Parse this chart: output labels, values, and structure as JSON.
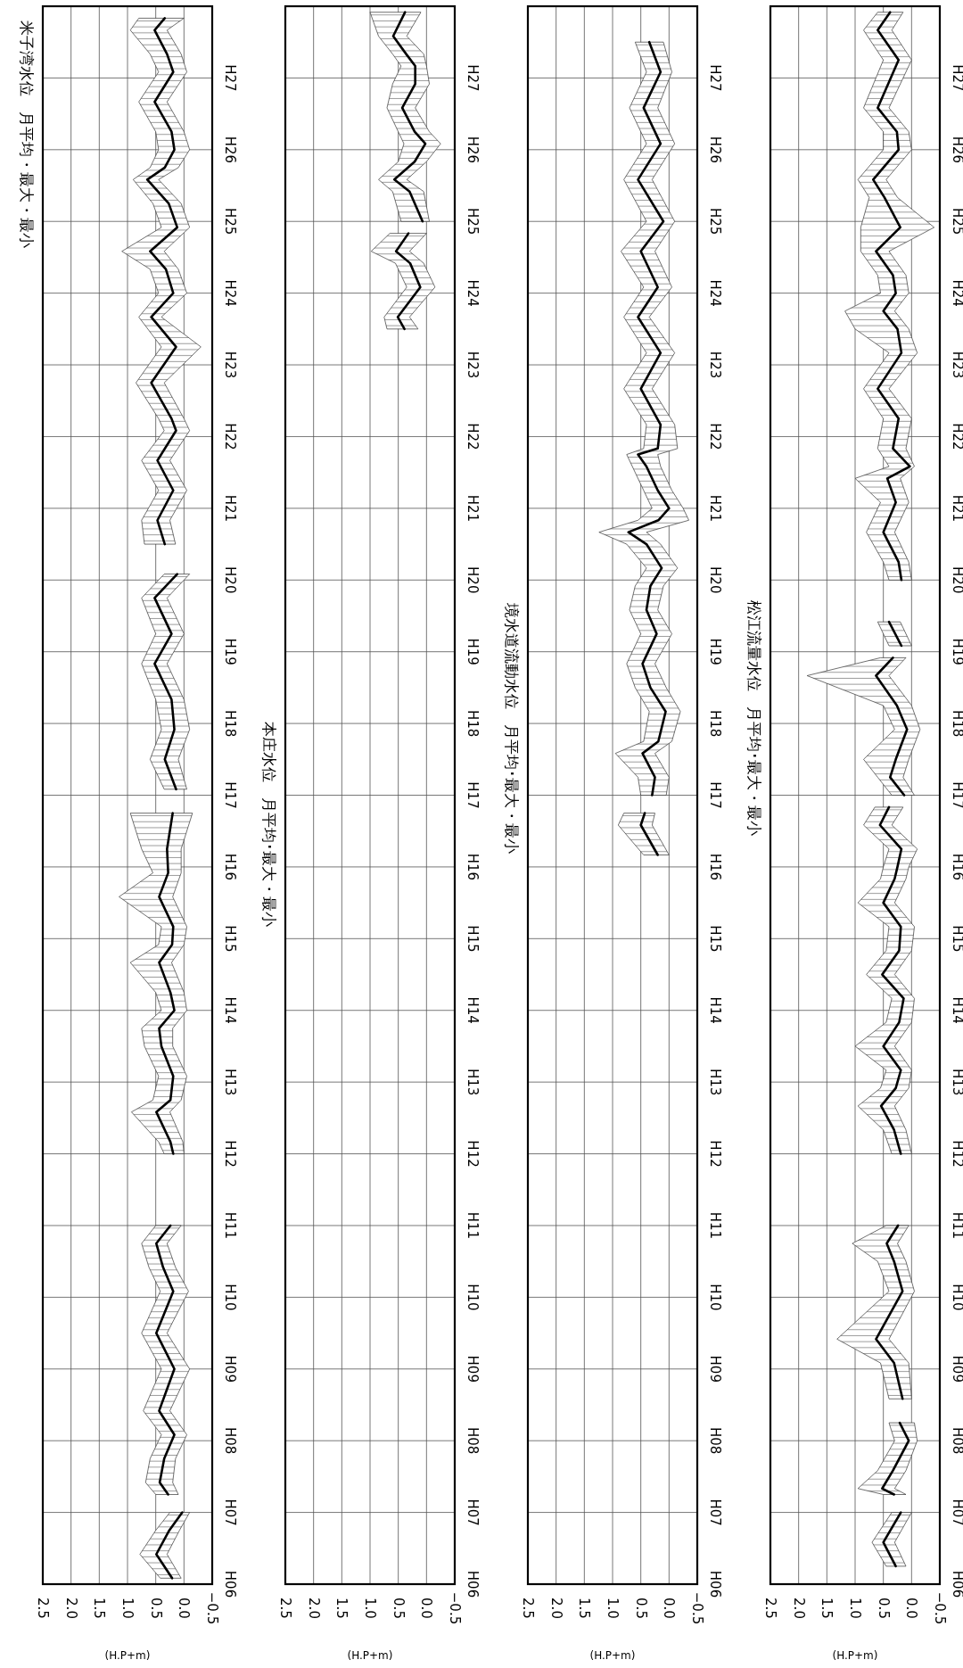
{
  "chart_data": [
    {
      "type": "line",
      "orientation": "horizontal",
      "title": "米子湾水位　月平均・最大・最小",
      "xlabel": "(H.P+m)",
      "ylim": [
        "1994",
        "2016"
      ],
      "xlim": [
        2.5,
        -0.5
      ],
      "grid": true,
      "yticks": [
        {
          "value": "1994",
          "label": "H06"
        },
        {
          "value": "1995",
          "label": "H07"
        },
        {
          "value": "1996",
          "label": "H08"
        },
        {
          "value": "1997",
          "label": "H09"
        },
        {
          "value": "1998",
          "label": "H10"
        },
        {
          "value": "1999",
          "label": "H11"
        },
        {
          "value": "2000",
          "label": "H12"
        },
        {
          "value": "2001",
          "label": "H13"
        },
        {
          "value": "2002",
          "label": "H14"
        },
        {
          "value": "2003",
          "label": "H15"
        },
        {
          "value": "2004",
          "label": "H16"
        },
        {
          "value": "2005",
          "label": "H17"
        },
        {
          "value": "2006",
          "label": "H18"
        },
        {
          "value": "2007",
          "label": "H19"
        },
        {
          "value": "2008",
          "label": "H20"
        },
        {
          "value": "2009",
          "label": "H21"
        },
        {
          "value": "2010",
          "label": "H22"
        },
        {
          "value": "2011",
          "label": "H23"
        },
        {
          "value": "2012",
          "label": "H24"
        },
        {
          "value": "2013",
          "label": "H25"
        },
        {
          "value": "2014",
          "label": "H26"
        },
        {
          "value": "2015",
          "label": "H27"
        }
      ],
      "xticks": [
        {
          "value": 2.5,
          "label": "2.5"
        },
        {
          "value": 2,
          "label": "2.0"
        },
        {
          "value": 1.5,
          "label": "1.5"
        },
        {
          "value": 1,
          "label": "1.0"
        },
        {
          "value": 0.5,
          "label": "0.5"
        },
        {
          "value": 0,
          "label": "0.0"
        },
        {
          "value": -0.5,
          "label": "−0.5"
        }
      ],
      "series": [
        {
          "color": "#000000",
          "x": [
            "1994-02",
            "1994-06",
            "1994-10",
            "1995-01"
          ],
          "values": [
            0.21,
            0.49,
            0.26,
            0.03
          ],
          "lower": [
            0.05,
            0.3,
            0.08,
            -0.1
          ],
          "upper": [
            0.42,
            0.78,
            0.5,
            0.25
          ]
        },
        {
          "color": "#000000",
          "x": [
            "1995-04",
            "1995-06",
            "1995-10",
            "1996-02",
            "1996-06",
            "1997-01",
            "1997-07",
            "1998-02",
            "1998-06",
            "1998-10",
            "1999-01"
          ],
          "values": [
            0.28,
            0.43,
            0.35,
            0.17,
            0.44,
            0.17,
            0.49,
            0.19,
            0.37,
            0.49,
            0.24
          ],
          "lower": [
            0.1,
            0.2,
            0.15,
            -0.05,
            0.25,
            -0.1,
            0.3,
            -0.08,
            0.15,
            0.3,
            0.05
          ],
          "upper": [
            0.5,
            0.68,
            0.6,
            0.4,
            0.72,
            0.4,
            0.75,
            0.42,
            0.62,
            0.75,
            0.5
          ]
        },
        {
          "color": "#000000",
          "x": [
            "2000-01",
            "2000-03",
            "2000-08",
            "2000-10",
            "2001-02",
            "2001-07",
            "2001-10",
            "2002-01",
            "2002-04",
            "2002-09",
            "2002-12",
            "2003-03",
            "2003-08",
            "2003-12",
            "2004-04",
            "2004-10"
          ],
          "values": [
            0.19,
            0.24,
            0.49,
            0.24,
            0.19,
            0.4,
            0.44,
            0.17,
            0.24,
            0.44,
            0.21,
            0.19,
            0.44,
            0.28,
            0.3,
            0.2
          ],
          "lower": [
            0.0,
            0.02,
            0.25,
            0.05,
            -0.05,
            0.2,
            0.2,
            -0.05,
            0.0,
            0.22,
            0.0,
            -0.05,
            0.2,
            0.05,
            0.05,
            -0.15
          ],
          "upper": [
            0.35,
            0.45,
            0.93,
            0.55,
            0.45,
            0.7,
            0.75,
            0.4,
            0.5,
            0.95,
            0.45,
            0.4,
            1.15,
            0.55,
            0.75,
            0.95
          ]
        },
        {
          "color": "#000000",
          "x": [
            "2005-02",
            "2005-07",
            "2005-12",
            "2006-05",
            "2006-11",
            "2007-04",
            "2007-10",
            "2008-02"
          ],
          "values": [
            0.14,
            0.34,
            0.17,
            0.22,
            0.52,
            0.22,
            0.52,
            0.12
          ],
          "lower": [
            -0.05,
            0.1,
            -0.1,
            0.0,
            0.3,
            0.0,
            0.3,
            -0.1
          ],
          "upper": [
            0.35,
            0.6,
            0.4,
            0.5,
            0.75,
            0.5,
            0.75,
            0.35
          ]
        },
        {
          "color": "#000000",
          "x": [
            "2008-07",
            "2008-11",
            "2009-04",
            "2009-09",
            "2010-02",
            "2010-04",
            "2010-10",
            "2011-04",
            "2011-09",
            "2012-01",
            "2012-05",
            "2012-08",
            "2012-12",
            "2013-04",
            "2013-08",
            "2013-10",
            "2014-01",
            "2014-04",
            "2014-09",
            "2015-02",
            "2015-05",
            "2015-09",
            "2015-11"
          ],
          "values": [
            0.34,
            0.47,
            0.19,
            0.47,
            0.14,
            0.22,
            0.58,
            0.14,
            0.58,
            0.19,
            0.32,
            0.6,
            0.12,
            0.27,
            0.65,
            0.34,
            0.17,
            0.22,
            0.52,
            0.19,
            0.3,
            0.52,
            0.34
          ],
          "lower": [
            0.15,
            0.25,
            -0.05,
            0.25,
            -0.1,
            0.0,
            0.35,
            -0.3,
            0.4,
            -0.05,
            0.1,
            0.35,
            -0.1,
            0.05,
            0.45,
            0.1,
            -0.1,
            0.0,
            0.3,
            -0.05,
            0.05,
            0.3,
            0.0
          ],
          "upper": [
            0.7,
            0.75,
            0.45,
            0.75,
            0.35,
            0.45,
            0.85,
            0.4,
            0.8,
            0.45,
            0.6,
            1.1,
            0.4,
            0.55,
            0.9,
            0.6,
            0.45,
            0.5,
            0.8,
            0.45,
            0.6,
            0.95,
            0.8
          ]
        }
      ]
    },
    {
      "type": "line",
      "orientation": "horizontal",
      "title": "本庄水位　月平均･最大・最小",
      "xlabel": "(H.P+m)",
      "ylim": [
        "1994",
        "2016"
      ],
      "xlim": [
        2.5,
        -0.5
      ],
      "grid": true,
      "yticks": [
        {
          "value": "1994",
          "label": "H06"
        },
        {
          "value": "1995",
          "label": "H07"
        },
        {
          "value": "1996",
          "label": "H08"
        },
        {
          "value": "1997",
          "label": "H09"
        },
        {
          "value": "1998",
          "label": "H10"
        },
        {
          "value": "1999",
          "label": "H11"
        },
        {
          "value": "2000",
          "label": "H12"
        },
        {
          "value": "2001",
          "label": "H13"
        },
        {
          "value": "2002",
          "label": "H14"
        },
        {
          "value": "2003",
          "label": "H15"
        },
        {
          "value": "2004",
          "label": "H16"
        },
        {
          "value": "2005",
          "label": "H17"
        },
        {
          "value": "2006",
          "label": "H18"
        },
        {
          "value": "2007",
          "label": "H19"
        },
        {
          "value": "2008",
          "label": "H20"
        },
        {
          "value": "2009",
          "label": "H21"
        },
        {
          "value": "2010",
          "label": "H22"
        },
        {
          "value": "2011",
          "label": "H23"
        },
        {
          "value": "2012",
          "label": "H24"
        },
        {
          "value": "2013",
          "label": "H25"
        },
        {
          "value": "2014",
          "label": "H26"
        },
        {
          "value": "2015",
          "label": "H27"
        }
      ],
      "xticks": [
        {
          "value": 2.5,
          "label": "2.5"
        },
        {
          "value": 2,
          "label": "2.0"
        },
        {
          "value": 1.5,
          "label": "1.5"
        },
        {
          "value": 1,
          "label": "1.0"
        },
        {
          "value": 0.5,
          "label": "0.5"
        },
        {
          "value": 0,
          "label": "0.0"
        },
        {
          "value": -0.5,
          "label": "−0.5"
        }
      ],
      "series": [
        {
          "color": "#000000",
          "x": [
            "2011-07",
            "2011-09",
            "2012-02",
            "2012-06",
            "2012-08",
            "2012-11"
          ],
          "values": [
            0.39,
            0.51,
            0.11,
            0.29,
            0.54,
            0.32
          ],
          "lower": [
            0.15,
            0.3,
            -0.15,
            0.05,
            0.3,
            0.0
          ],
          "upper": [
            0.7,
            0.75,
            0.35,
            0.55,
            0.98,
            0.65
          ]
        },
        {
          "color": "#000000",
          "x": [
            "2013-01",
            "2013-06",
            "2013-08",
            "2013-11",
            "2014-02",
            "2014-04",
            "2014-08",
            "2014-12",
            "2015-03",
            "2015-05",
            "2015-08",
            "2015-12"
          ],
          "values": [
            0.07,
            0.3,
            0.57,
            0.21,
            0.02,
            0.21,
            0.43,
            0.2,
            0.2,
            0.36,
            0.59,
            0.38
          ],
          "lower": [
            -0.05,
            0.05,
            0.35,
            0.0,
            -0.25,
            -0.05,
            0.2,
            -0.05,
            0.0,
            0.05,
            0.35,
            0.1
          ],
          "upper": [
            0.45,
            0.6,
            0.85,
            0.5,
            0.4,
            0.5,
            0.7,
            0.6,
            0.45,
            0.6,
            0.85,
            1.0
          ]
        }
      ]
    },
    {
      "type": "line",
      "orientation": "horizontal",
      "title": "境水道流動水位　月平均･最大・最小",
      "xlabel": "(H.P+m)",
      "ylim": [
        "1994",
        "2016"
      ],
      "xlim": [
        2.5,
        -0.5
      ],
      "grid": true,
      "yticks": [
        {
          "value": "1994",
          "label": "H06"
        },
        {
          "value": "1995",
          "label": "H07"
        },
        {
          "value": "1996",
          "label": "H08"
        },
        {
          "value": "1997",
          "label": "H09"
        },
        {
          "value": "1998",
          "label": "H10"
        },
        {
          "value": "1999",
          "label": "H11"
        },
        {
          "value": "2000",
          "label": "H12"
        },
        {
          "value": "2001",
          "label": "H13"
        },
        {
          "value": "2002",
          "label": "H14"
        },
        {
          "value": "2003",
          "label": "H15"
        },
        {
          "value": "2004",
          "label": "H16"
        },
        {
          "value": "2005",
          "label": "H17"
        },
        {
          "value": "2006",
          "label": "H18"
        },
        {
          "value": "2007",
          "label": "H19"
        },
        {
          "value": "2008",
          "label": "H20"
        },
        {
          "value": "2009",
          "label": "H21"
        },
        {
          "value": "2010",
          "label": "H22"
        },
        {
          "value": "2011",
          "label": "H23"
        },
        {
          "value": "2012",
          "label": "H24"
        },
        {
          "value": "2013",
          "label": "H25"
        },
        {
          "value": "2014",
          "label": "H26"
        },
        {
          "value": "2015",
          "label": "H27"
        }
      ],
      "xticks": [
        {
          "value": 2.5,
          "label": "2.5"
        },
        {
          "value": 2,
          "label": "2.0"
        },
        {
          "value": 1.5,
          "label": "1.5"
        },
        {
          "value": 1,
          "label": "1.0"
        },
        {
          "value": 0.5,
          "label": "0.5"
        },
        {
          "value": 0,
          "label": "0.0"
        },
        {
          "value": -0.5,
          "label": "−0.5"
        }
      ],
      "series": [
        {
          "color": "#000000",
          "x": [
            "2004-03",
            "2004-08",
            "2004-10"
          ],
          "values": [
            0.2,
            0.5,
            0.43
          ],
          "lower": [
            0.0,
            0.3,
            0.25
          ],
          "upper": [
            0.45,
            0.9,
            0.8
          ]
        },
        {
          "color": "#000000",
          "x": [
            "2005-01",
            "2005-04",
            "2005-08",
            "2005-10",
            "2006-03",
            "2006-07",
            "2006-11",
            "2007-04",
            "2007-08",
            "2007-12",
            "2008-03",
            "2008-07",
            "2008-09",
            "2008-11",
            "2009-01",
            "2009-04",
            "2009-08",
            "2009-10",
            "2009-11",
            "2010-03",
            "2010-09",
            "2011-03",
            "2011-09",
            "2012-02",
            "2012-08",
            "2013-01",
            "2013-08",
            "2014-02",
            "2014-08",
            "2015-02",
            "2015-07"
          ],
          "values": [
            0.3,
            0.25,
            0.47,
            0.19,
            0.06,
            0.33,
            0.47,
            0.22,
            0.4,
            0.33,
            0.13,
            0.4,
            0.72,
            0.19,
            0.0,
            0.2,
            0.4,
            0.55,
            0.2,
            0.15,
            0.5,
            0.15,
            0.55,
            0.2,
            0.5,
            0.1,
            0.55,
            0.15,
            0.45,
            0.15,
            0.35
          ],
          "lower": [
            0.05,
            0.0,
            0.25,
            -0.05,
            -0.2,
            0.05,
            0.25,
            -0.05,
            0.2,
            0.1,
            -0.15,
            0.15,
            0.4,
            -0.35,
            -0.25,
            -0.05,
            0.15,
            0.2,
            -0.15,
            -0.1,
            0.3,
            -0.1,
            0.35,
            -0.05,
            0.25,
            -0.1,
            0.3,
            -0.1,
            0.2,
            -0.05,
            0.1
          ],
          "upper": [
            0.5,
            0.55,
            0.95,
            0.45,
            0.35,
            0.6,
            0.75,
            0.5,
            0.7,
            0.6,
            0.4,
            0.75,
            1.24,
            0.55,
            0.3,
            0.45,
            0.65,
            0.75,
            0.45,
            0.4,
            0.8,
            0.4,
            0.8,
            0.45,
            0.85,
            0.4,
            0.8,
            0.4,
            0.7,
            0.4,
            0.6
          ]
        }
      ]
    },
    {
      "type": "line",
      "orientation": "horizontal",
      "title": "松江流量水位　月平均･最大・最小",
      "xlabel": "(H.P+m)",
      "ylim": [
        "1994",
        "2016"
      ],
      "xlim": [
        2.5,
        -0.5
      ],
      "grid": true,
      "yticks": [
        {
          "value": "1994",
          "label": "H06"
        },
        {
          "value": "1995",
          "label": "H07"
        },
        {
          "value": "1996",
          "label": "H08"
        },
        {
          "value": "1997",
          "label": "H09"
        },
        {
          "value": "1998",
          "label": "H10"
        },
        {
          "value": "1999",
          "label": "H11"
        },
        {
          "value": "2000",
          "label": "H12"
        },
        {
          "value": "2001",
          "label": "H13"
        },
        {
          "value": "2002",
          "label": "H14"
        },
        {
          "value": "2003",
          "label": "H15"
        },
        {
          "value": "2004",
          "label": "H16"
        },
        {
          "value": "2005",
          "label": "H17"
        },
        {
          "value": "2006",
          "label": "H18"
        },
        {
          "value": "2007",
          "label": "H19"
        },
        {
          "value": "2008",
          "label": "H20"
        },
        {
          "value": "2009",
          "label": "H21"
        },
        {
          "value": "2010",
          "label": "H22"
        },
        {
          "value": "2011",
          "label": "H23"
        },
        {
          "value": "2012",
          "label": "H24"
        },
        {
          "value": "2013",
          "label": "H25"
        },
        {
          "value": "2014",
          "label": "H26"
        },
        {
          "value": "2015",
          "label": "H27"
        }
      ],
      "xticks": [
        {
          "value": 2.5,
          "label": "2.5"
        },
        {
          "value": 2,
          "label": "2.0"
        },
        {
          "value": 1.5,
          "label": "1.5"
        },
        {
          "value": 1,
          "label": "1.0"
        },
        {
          "value": 0.5,
          "label": "0.5"
        },
        {
          "value": 0,
          "label": "0.0"
        },
        {
          "value": -0.5,
          "label": "−0.5"
        }
      ],
      "series": [
        {
          "color": "#000000",
          "x": [
            "1994-04",
            "1994-08",
            "1995-01"
          ],
          "values": [
            0.28,
            0.5,
            0.19
          ],
          "lower": [
            0.1,
            0.3,
            0.0
          ],
          "upper": [
            0.45,
            0.7,
            0.35
          ]
        },
        {
          "color": "#000000",
          "x": [
            "1995-04",
            "1995-05",
            "1995-08",
            "1996-01",
            "1996-04"
          ],
          "values": [
            0.31,
            0.52,
            0.33,
            0.05,
            0.21
          ],
          "lower": [
            0.1,
            0.3,
            0.1,
            -0.1,
            -0.05
          ],
          "upper": [
            0.5,
            0.95,
            0.6,
            0.3,
            0.4
          ]
        },
        {
          "color": "#000000",
          "x": [
            "1996-08",
            "1997-02",
            "1997-06",
            "1998-02",
            "1998-07",
            "1998-10",
            "1999-01"
          ],
          "values": [
            0.16,
            0.31,
            0.63,
            0.16,
            0.31,
            0.44,
            0.24
          ],
          "lower": [
            0.0,
            0.05,
            0.4,
            -0.05,
            0.1,
            0.25,
            0.05
          ],
          "upper": [
            0.4,
            0.55,
            1.32,
            0.4,
            0.6,
            1.05,
            0.45
          ]
        },
        {
          "color": "#000000",
          "x": [
            "2000-01",
            "2000-05",
            "2000-09",
            "2000-12",
            "2001-03",
            "2001-07",
            "2001-11",
            "2002-03",
            "2002-07",
            "2002-11",
            "2003-03",
            "2003-07",
            "2003-11",
            "2004-01",
            "2004-04",
            "2004-08",
            "2004-11"
          ],
          "values": [
            0.19,
            0.31,
            0.54,
            0.28,
            0.19,
            0.5,
            0.22,
            0.14,
            0.52,
            0.22,
            0.19,
            0.5,
            0.3,
            0.25,
            0.18,
            0.56,
            0.4
          ],
          "lower": [
            0.0,
            0.1,
            0.3,
            0.05,
            0.0,
            0.3,
            0.0,
            -0.05,
            0.3,
            0.0,
            -0.05,
            0.3,
            0.1,
            0.05,
            -0.1,
            0.35,
            0.15
          ],
          "upper": [
            0.35,
            0.5,
            0.95,
            0.55,
            0.45,
            1.0,
            0.45,
            0.35,
            0.8,
            0.45,
            0.4,
            0.95,
            0.55,
            0.5,
            0.4,
            0.85,
            0.65
          ]
        },
        {
          "color": "#000000",
          "x": [
            "2005-01",
            "2005-04",
            "2005-07",
            "2005-12",
            "2006-04",
            "2006-09",
            "2006-12"
          ],
          "values": [
            0.13,
            0.38,
            0.28,
            0.08,
            0.26,
            0.63,
            0.33
          ],
          "lower": [
            -0.05,
            0.15,
            0.05,
            -0.15,
            0.0,
            0.4,
            0.1
          ],
          "upper": [
            0.35,
            0.6,
            0.85,
            0.3,
            0.5,
            1.85,
            0.55
          ]
        },
        {
          "color": "#000000",
          "x": [
            "2007-02",
            "2007-06"
          ],
          "values": [
            0.18,
            0.4
          ],
          "lower": [
            0.0,
            0.2
          ],
          "upper": [
            0.4,
            0.6
          ]
        },
        {
          "color": "#000000",
          "x": [
            "2008-01",
            "2008-04",
            "2008-09",
            "2009-02",
            "2009-06",
            "2009-08",
            "2009-11",
            "2010-04",
            "2010-09",
            "2011-03",
            "2011-07",
            "2011-10",
            "2012-01",
            "2012-04",
            "2012-08",
            "2012-12",
            "2013-05",
            "2013-08",
            "2014-01",
            "2014-04",
            "2014-08",
            "2015-04",
            "2015-09",
            "2015-12"
          ],
          "values": [
            0.18,
            0.23,
            0.5,
            0.28,
            0.43,
            0.03,
            0.33,
            0.23,
            0.6,
            0.18,
            0.25,
            0.5,
            0.28,
            0.33,
            0.63,
            0.2,
            0.48,
            0.68,
            0.23,
            0.26,
            0.6,
            0.23,
            0.6,
            0.38
          ],
          "lower": [
            0.0,
            0.05,
            0.3,
            0.05,
            0.2,
            -0.05,
            0.1,
            0.0,
            0.4,
            -0.1,
            0.05,
            0.3,
            0.05,
            0.1,
            0.4,
            -0.4,
            0.25,
            0.45,
            0.0,
            0.05,
            0.4,
            0.0,
            0.35,
            0.15
          ],
          "upper": [
            0.4,
            0.5,
            0.8,
            0.55,
            1.0,
            0.4,
            0.6,
            0.5,
            0.85,
            0.4,
            1.0,
            1.18,
            0.55,
            0.6,
            0.9,
            0.9,
            0.75,
            0.95,
            0.5,
            0.5,
            0.85,
            0.5,
            0.85,
            0.6
          ]
        }
      ]
    }
  ]
}
